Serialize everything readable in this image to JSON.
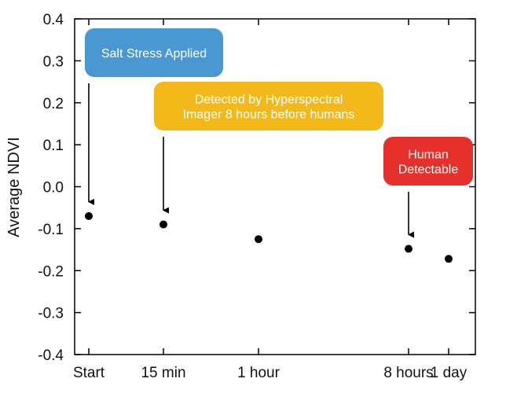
{
  "chart_data": {
    "type": "scatter",
    "title": "",
    "xlabel": "",
    "ylabel": "Average NDVI",
    "ylim": [
      -0.4,
      0.4
    ],
    "yticks": [
      "0.4",
      "0.3",
      "0.2",
      "0.1",
      "0.0",
      "-0.1",
      "-0.2",
      "-0.3",
      "-0.4"
    ],
    "grid": false,
    "categories": [
      "Start",
      "15 min",
      "1 hour",
      "8 hours",
      "1 day"
    ],
    "values": [
      -0.07,
      -0.09,
      -0.125,
      -0.148,
      -0.172
    ],
    "point_color": "#000000",
    "annotations": [
      {
        "lines": [
          "Salt Stress Applied"
        ],
        "color": "#4a98d1",
        "points_to": "Start"
      },
      {
        "lines": [
          "Detected by Hyperspectral",
          "Imager 8 hours before humans"
        ],
        "color": "#f3b81a",
        "points_to": "15 min"
      },
      {
        "lines": [
          "Human",
          "Detectable"
        ],
        "color": "#e5302b",
        "points_to": "8 hours"
      }
    ]
  }
}
